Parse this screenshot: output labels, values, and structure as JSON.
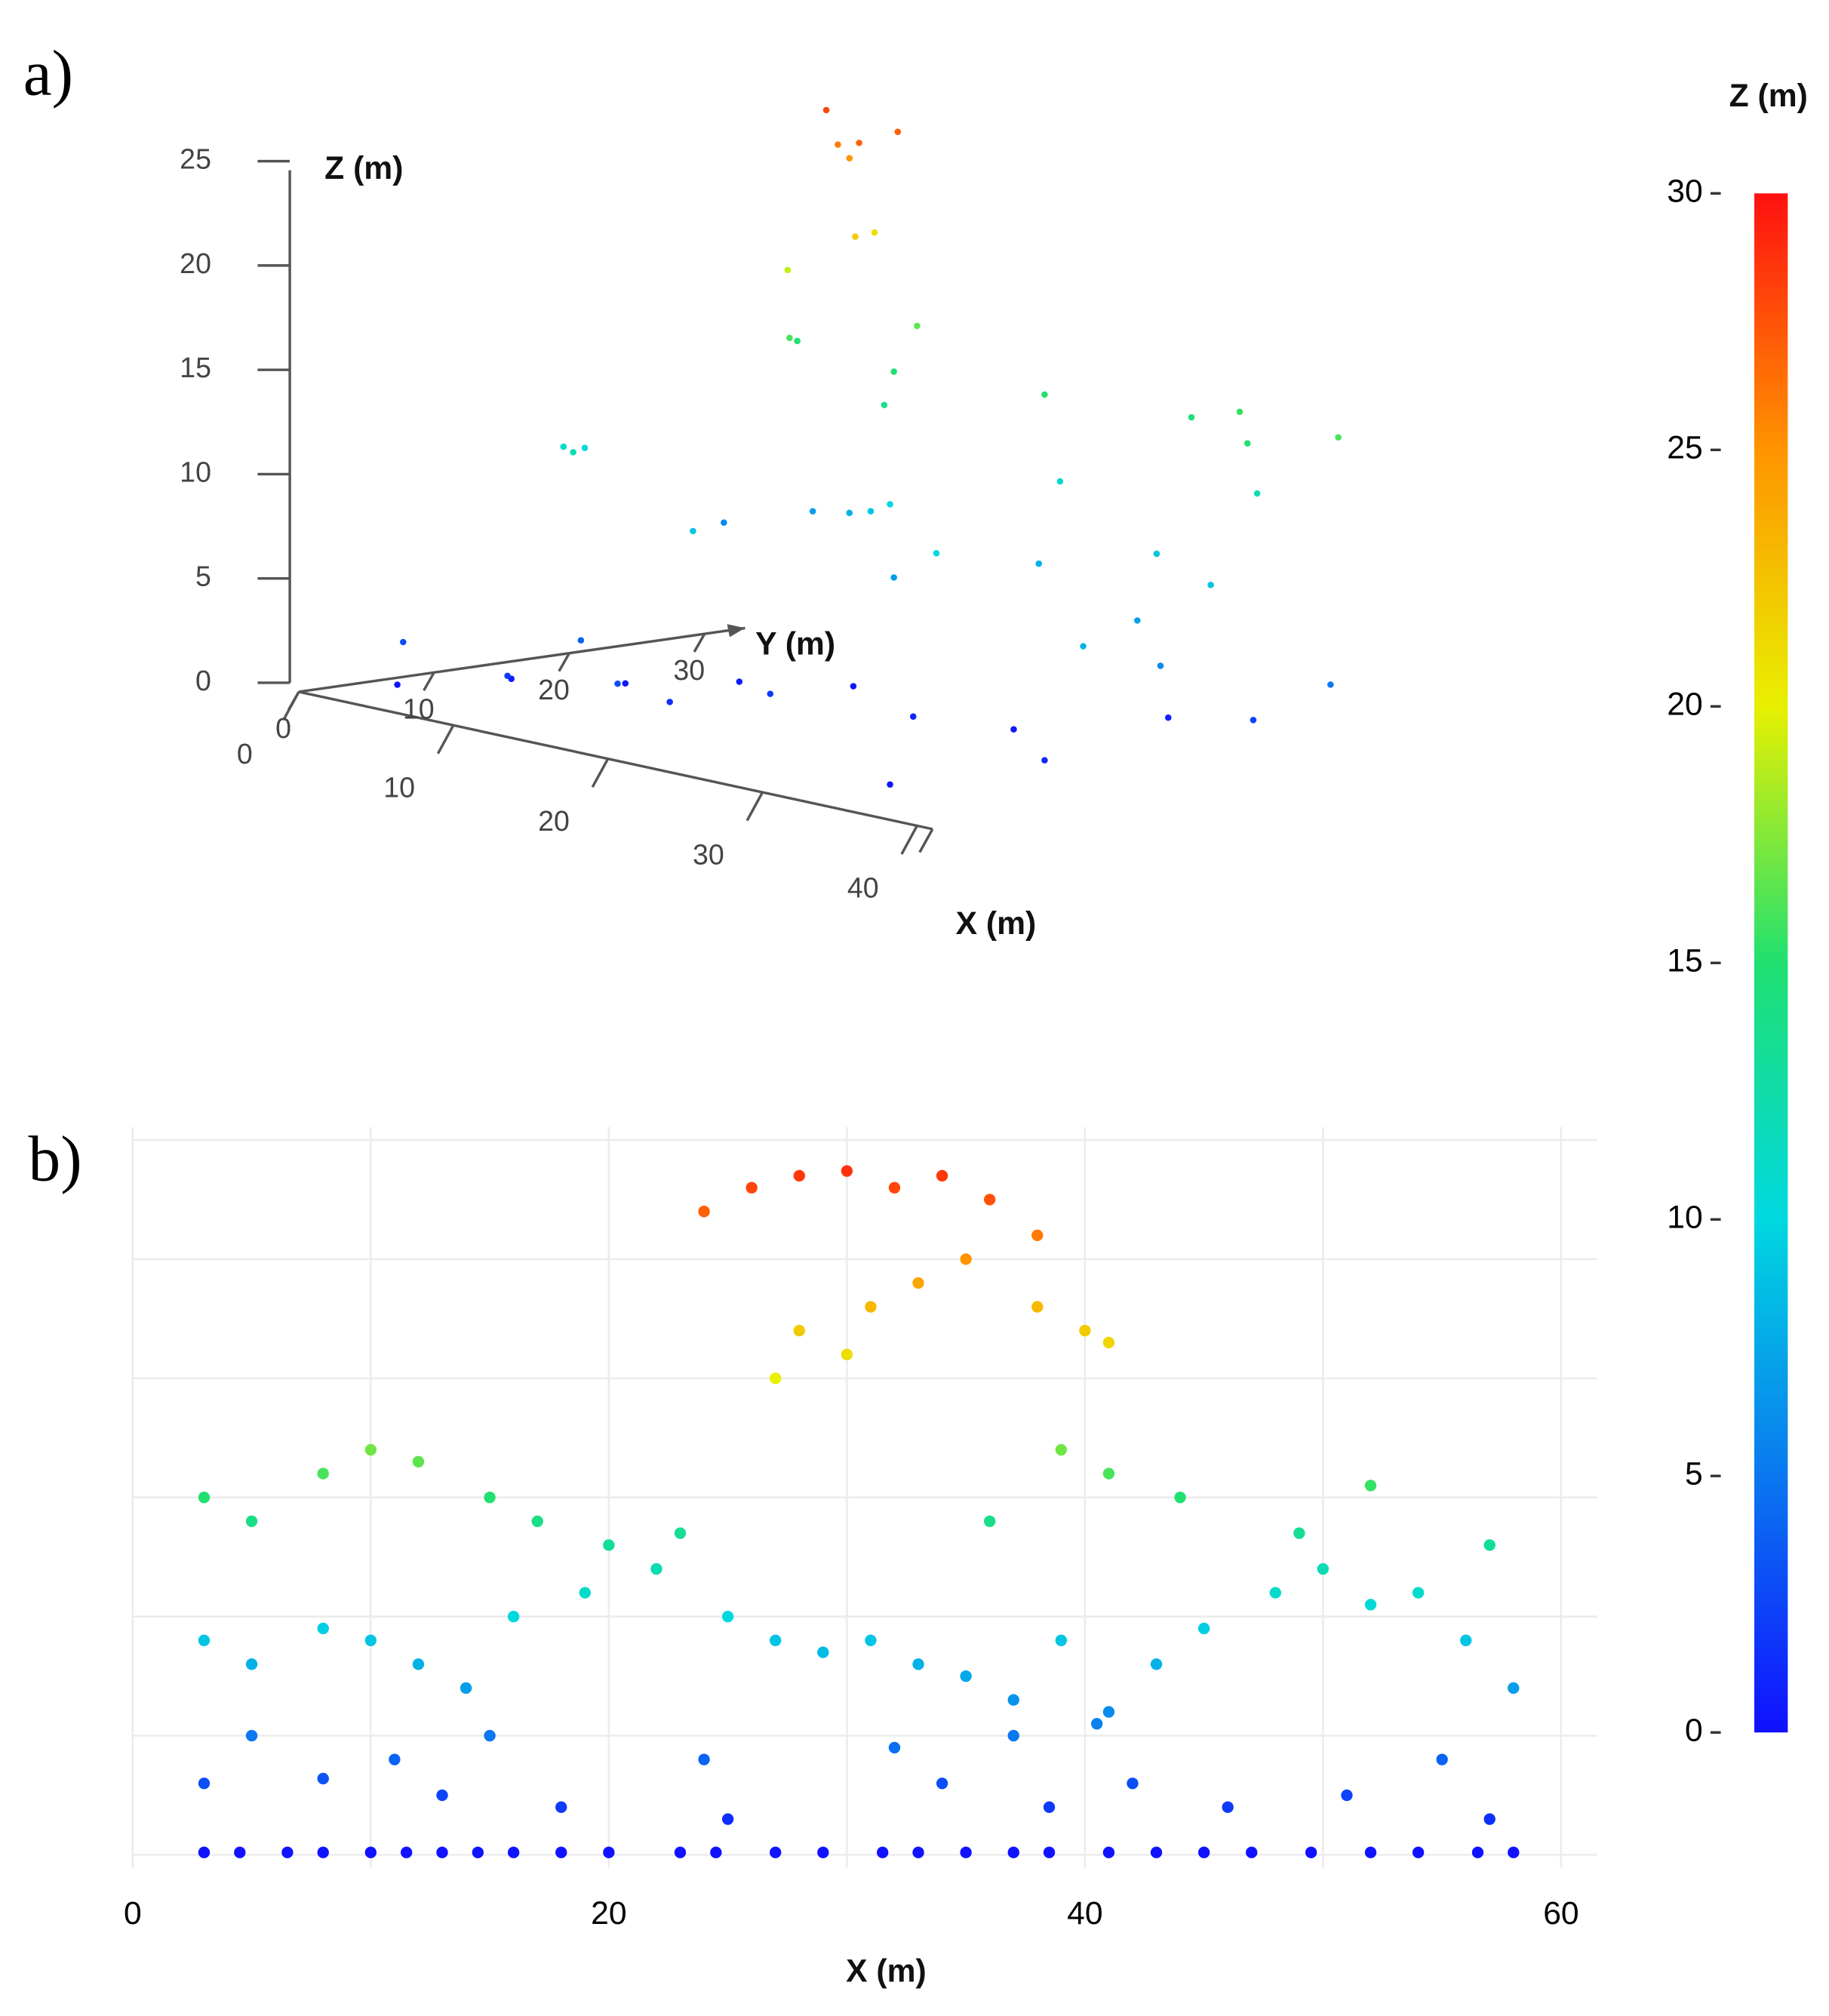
{
  "chart_data": [
    {
      "type": "scatter3d",
      "label": "a)",
      "xlabel": "X (m)",
      "ylabel": "Y (m)",
      "zlabel": "Z (m)",
      "xticks": [
        0,
        10,
        20,
        30,
        40
      ],
      "yticks": [
        0,
        10,
        20,
        30
      ],
      "zticks": [
        0,
        5,
        10,
        15,
        20,
        25
      ],
      "xlim": [
        0,
        41
      ],
      "ylim": [
        0,
        33
      ],
      "zlim": [
        0,
        25
      ],
      "x": [
        2,
        5,
        8,
        11,
        14,
        17,
        20,
        24,
        27,
        30,
        33,
        36,
        39,
        3,
        7,
        12,
        16,
        21,
        26,
        31,
        35,
        40,
        44,
        1,
        4,
        9,
        15,
        19,
        23,
        29,
        34,
        38,
        42,
        5,
        10,
        13,
        18,
        6,
        9,
        12,
        14,
        16,
        22,
        28,
        32,
        36,
        41,
        8,
        11,
        15,
        13,
        16,
        14,
        17,
        12
      ],
      "y": [
        5,
        10,
        15,
        20,
        25,
        8,
        12,
        18,
        22,
        30,
        6,
        14,
        26,
        28,
        30,
        27,
        24,
        20,
        25,
        28,
        22,
        18,
        26,
        20,
        15,
        10,
        12,
        22,
        30,
        14,
        32,
        24,
        10,
        2,
        4,
        6,
        3,
        30,
        26,
        32,
        28,
        25,
        30,
        34,
        33,
        29,
        30,
        27,
        30,
        24,
        25,
        26,
        23,
        22,
        27
      ],
      "z": [
        0.2,
        0.5,
        0.3,
        0.4,
        0.2,
        1.5,
        2,
        1,
        0.5,
        0.8,
        0.3,
        1.2,
        2.5,
        6,
        7,
        8,
        9,
        7,
        8,
        9,
        7,
        6,
        5,
        10,
        11,
        12,
        9,
        10,
        11,
        10,
        12,
        9,
        8,
        3,
        2,
        4,
        3,
        15,
        16,
        16.5,
        15,
        14,
        15,
        14.5,
        15.5,
        15,
        16,
        19,
        21,
        22,
        26,
        27,
        28,
        27,
        25
      ],
      "grid": false
    },
    {
      "type": "scatter",
      "label": "b)",
      "xlabel": "X (m)",
      "xlim": [
        0,
        60
      ],
      "ylim": [
        0,
        30
      ],
      "xticks": [
        0,
        20,
        40,
        60
      ],
      "xgrid": [
        0,
        10,
        20,
        30,
        40,
        50,
        60
      ],
      "ygrid": [
        0,
        5,
        10,
        15,
        20,
        25,
        30
      ],
      "grid": true,
      "x": [
        3,
        4.5,
        6.5,
        8,
        10,
        11.5,
        13,
        14.5,
        16,
        18,
        20,
        23,
        24.5,
        27,
        29,
        31.5,
        33,
        35,
        37,
        38.5,
        41,
        43,
        45,
        47,
        49.5,
        52,
        54,
        56.5,
        58,
        3,
        5,
        8,
        11,
        13,
        15,
        18,
        24,
        25,
        32,
        34,
        37,
        38.5,
        40.5,
        42,
        46,
        51,
        55,
        57,
        3,
        5,
        8,
        10,
        12,
        14,
        16,
        19,
        22,
        25,
        27,
        29,
        31,
        33,
        35,
        37,
        39,
        41,
        43,
        45,
        48,
        50,
        52,
        54,
        56,
        58,
        3,
        5,
        8,
        10,
        12,
        15,
        17,
        20,
        23,
        36,
        39,
        41,
        44,
        49,
        52,
        57,
        27,
        28,
        30,
        31,
        33,
        35,
        38,
        40,
        41,
        24,
        26,
        28,
        30,
        32,
        34,
        36,
        38
      ],
      "z": [
        0.1,
        0.1,
        0.1,
        0.1,
        0.1,
        0.1,
        0.1,
        0.1,
        0.1,
        0.1,
        0.1,
        0.1,
        0.1,
        0.1,
        0.1,
        0.1,
        0.1,
        0.1,
        0.1,
        0.1,
        0.1,
        0.1,
        0.1,
        0.1,
        0.1,
        0.1,
        0.1,
        0.1,
        0.1,
        3,
        5,
        3.2,
        4,
        2.5,
        5,
        2,
        4,
        1.5,
        4.5,
        3,
        5,
        2,
        5.5,
        3,
        2,
        2.5,
        4,
        1.5,
        9,
        8,
        9.5,
        9,
        8,
        7,
        10,
        11,
        12,
        10,
        9,
        8.5,
        9,
        8,
        7.5,
        6.5,
        9,
        6,
        8,
        9.5,
        11,
        12,
        10.5,
        11,
        9,
        7,
        15,
        14,
        16,
        17,
        16.5,
        15,
        14,
        13,
        13.5,
        14,
        17,
        16,
        15,
        13.5,
        15.5,
        13,
        20,
        22,
        21,
        23,
        24,
        25,
        23,
        22,
        21.5,
        27,
        28,
        28.5,
        28.7,
        28,
        28.5,
        27.5,
        26
      ]
    },
    {
      "type": "colorbar",
      "title": "Z (m)",
      "clim": [
        0,
        30
      ],
      "ticks": [
        0,
        5,
        10,
        15,
        20,
        25,
        30
      ],
      "colors": [
        "#1010ff",
        "#0a78f0",
        "#00d8e0",
        "#20e070",
        "#e8f000",
        "#ff9400",
        "#ff1010"
      ]
    }
  ]
}
